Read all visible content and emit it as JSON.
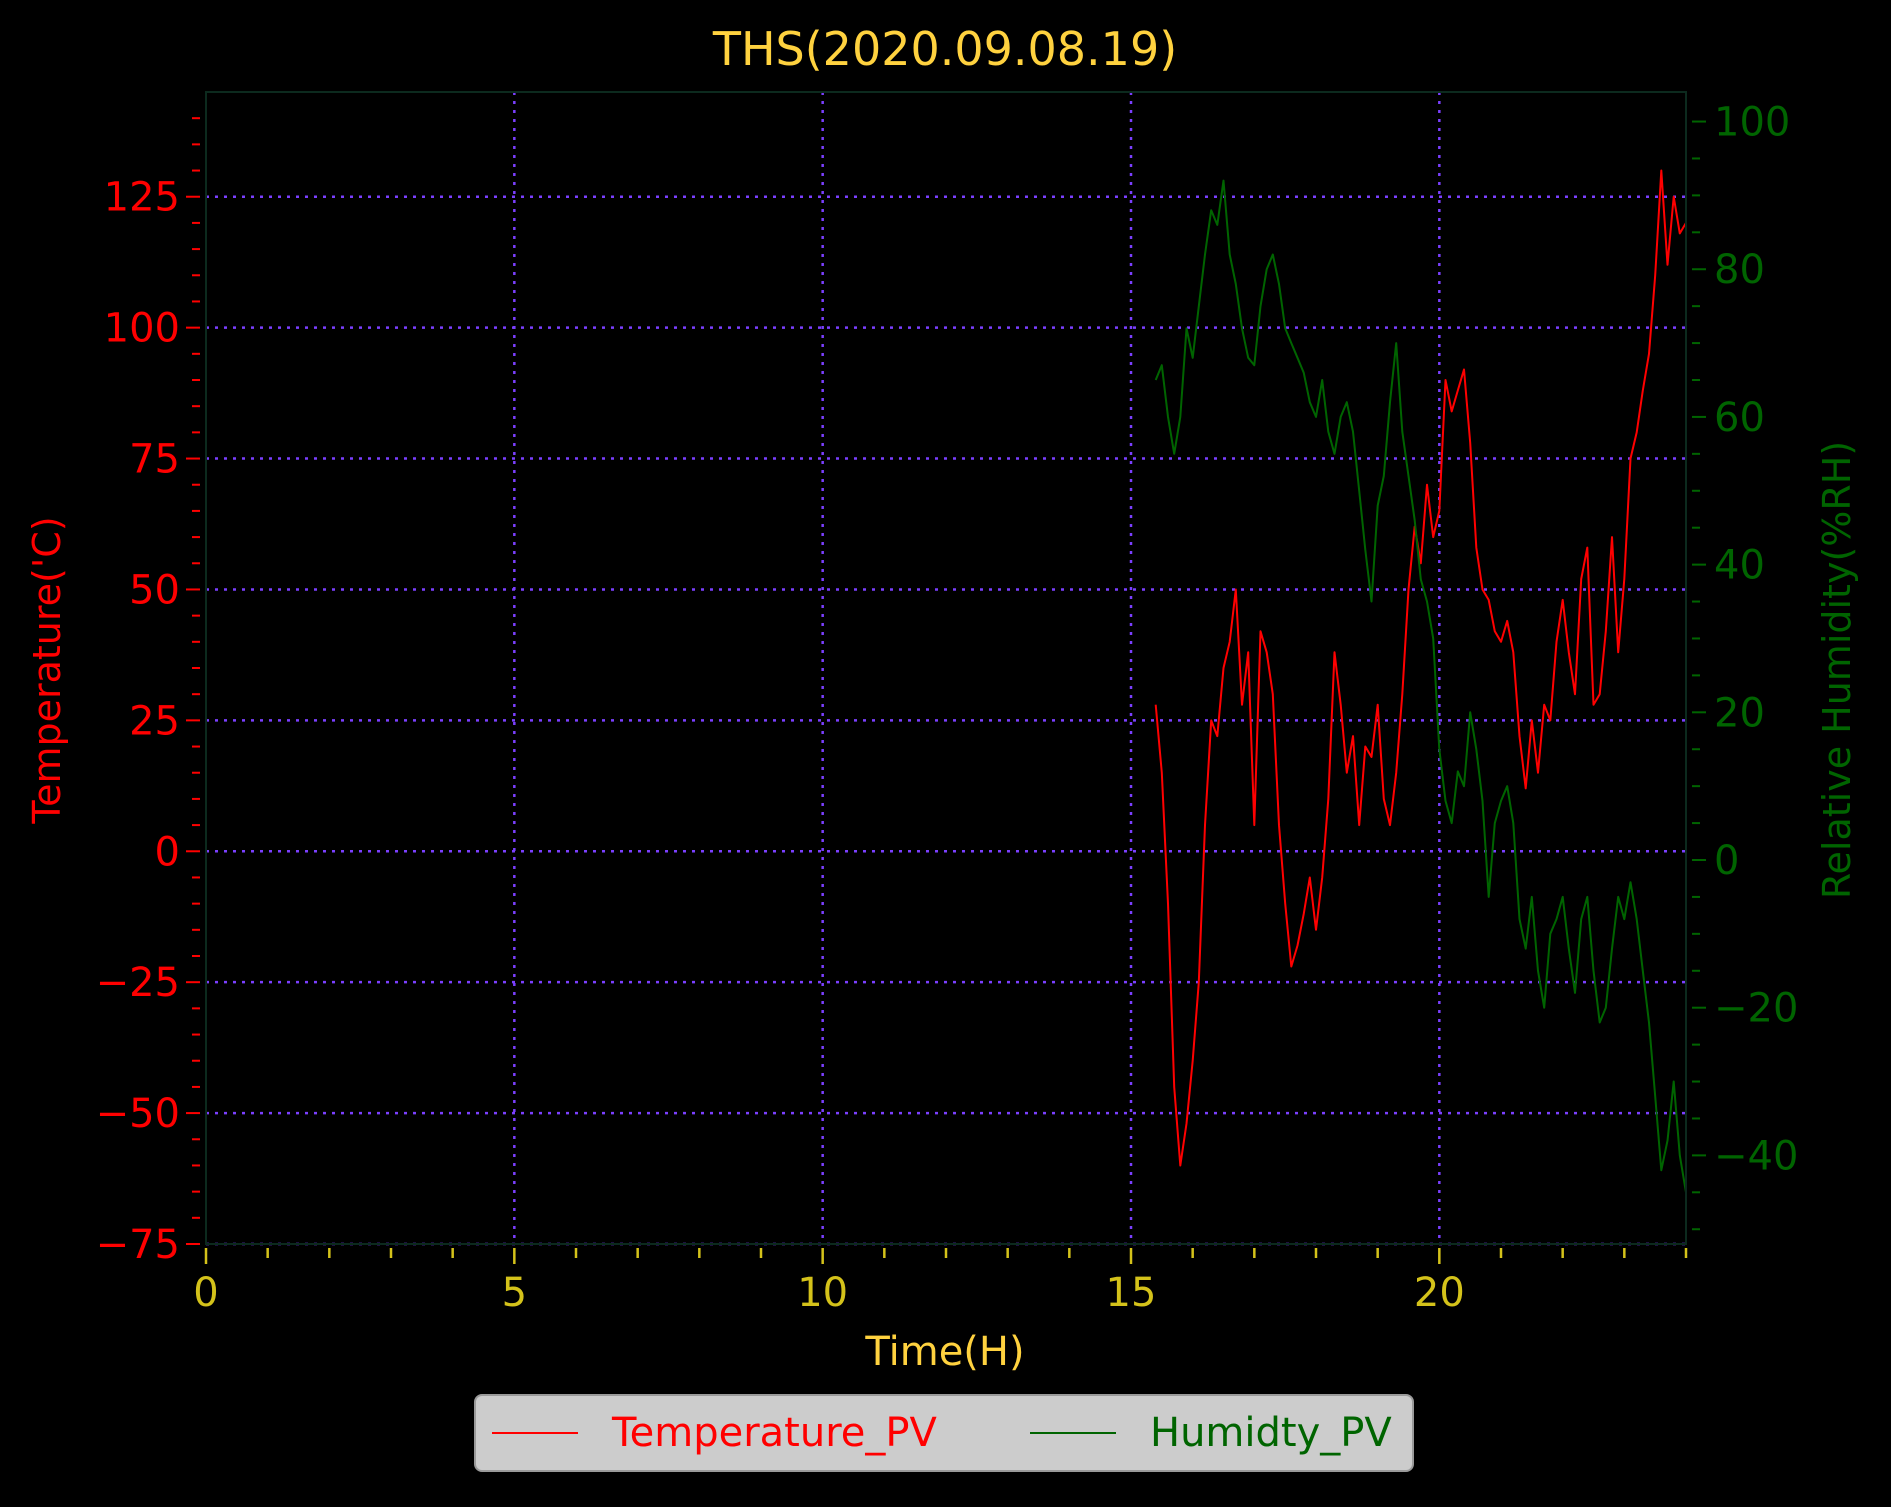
{
  "chart_data": {
    "type": "line",
    "title": "THS(2020.09.08.19)",
    "xlabel": "Time(H)",
    "ylabel_left": "Temperature('C)",
    "ylabel_right": "Relative Humidity(%RH)",
    "xlim": [
      0,
      24
    ],
    "ylim_left": [
      -75,
      145
    ],
    "ylim_right": [
      -52,
      104
    ],
    "x_ticks": [
      "0",
      "5",
      "10",
      "15",
      "20"
    ],
    "y_left_ticks": [
      "125",
      "100",
      "75",
      "50",
      "25",
      "0",
      "−25",
      "−50",
      "−75"
    ],
    "y_right_ticks": [
      "100",
      "80",
      "60",
      "40",
      "20",
      "0",
      "−20",
      "−40"
    ],
    "grid": true,
    "legend_position": "bottom-center",
    "colors": {
      "title": "#ffd23f",
      "x_axis": "#d4c21a",
      "temperature": "#ff0000",
      "humidity": "#006400",
      "grid": "#7b3fff"
    },
    "series": [
      {
        "name": "Temperature_PV",
        "axis": "left",
        "color": "#ff0000",
        "x": [
          15.4,
          15.5,
          15.6,
          15.7,
          15.8,
          15.9,
          16.0,
          16.1,
          16.2,
          16.3,
          16.4,
          16.5,
          16.6,
          16.7,
          16.8,
          16.9,
          17.0,
          17.1,
          17.2,
          17.3,
          17.4,
          17.5,
          17.6,
          17.7,
          17.8,
          17.9,
          18.0,
          18.1,
          18.2,
          18.3,
          18.4,
          18.5,
          18.6,
          18.7,
          18.8,
          18.9,
          19.0,
          19.1,
          19.2,
          19.3,
          19.4,
          19.5,
          19.6,
          19.7,
          19.8,
          19.9,
          20.0,
          20.1,
          20.2,
          20.3,
          20.4,
          20.5,
          20.6,
          20.7,
          20.8,
          20.9,
          21.0,
          21.1,
          21.2,
          21.3,
          21.4,
          21.5,
          21.6,
          21.7,
          21.8,
          21.9,
          22.0,
          22.1,
          22.2,
          22.3,
          22.4,
          22.5,
          22.6,
          22.7,
          22.8,
          22.9,
          23.0,
          23.1,
          23.2,
          23.3,
          23.4,
          23.5,
          23.6,
          23.7,
          23.8,
          23.9,
          24.0
        ],
        "values": [
          28,
          15,
          -10,
          -45,
          -60,
          -52,
          -40,
          -25,
          5,
          25,
          22,
          35,
          40,
          50,
          28,
          38,
          5,
          42,
          38,
          30,
          5,
          -10,
          -22,
          -18,
          -12,
          -5,
          -15,
          -5,
          10,
          38,
          28,
          15,
          22,
          5,
          20,
          18,
          28,
          10,
          5,
          15,
          30,
          50,
          62,
          55,
          70,
          60,
          65,
          90,
          84,
          88,
          92,
          78,
          58,
          50,
          48,
          42,
          40,
          44,
          38,
          22,
          12,
          25,
          15,
          28,
          25,
          40,
          48,
          38,
          30,
          52,
          58,
          28,
          30,
          42,
          60,
          38,
          52,
          75,
          80,
          88,
          95,
          110,
          130,
          112,
          125,
          118,
          120
        ]
      },
      {
        "name": "Humidty_PV",
        "axis": "right",
        "color": "#006400",
        "x": [
          15.4,
          15.5,
          15.6,
          15.7,
          15.8,
          15.9,
          16.0,
          16.1,
          16.2,
          16.3,
          16.4,
          16.5,
          16.6,
          16.7,
          16.8,
          16.9,
          17.0,
          17.1,
          17.2,
          17.3,
          17.4,
          17.5,
          17.6,
          17.7,
          17.8,
          17.9,
          18.0,
          18.1,
          18.2,
          18.3,
          18.4,
          18.5,
          18.6,
          18.7,
          18.8,
          18.9,
          19.0,
          19.1,
          19.2,
          19.3,
          19.4,
          19.5,
          19.6,
          19.7,
          19.8,
          19.9,
          20.0,
          20.1,
          20.2,
          20.3,
          20.4,
          20.5,
          20.6,
          20.7,
          20.8,
          20.9,
          21.0,
          21.1,
          21.2,
          21.3,
          21.4,
          21.5,
          21.6,
          21.7,
          21.8,
          21.9,
          22.0,
          22.1,
          22.2,
          22.3,
          22.4,
          22.5,
          22.6,
          22.7,
          22.8,
          22.9,
          23.0,
          23.1,
          23.2,
          23.3,
          23.4,
          23.5,
          23.6,
          23.7,
          23.8,
          23.9,
          24.0
        ],
        "values": [
          65,
          67,
          60,
          55,
          60,
          72,
          68,
          75,
          82,
          88,
          86,
          92,
          82,
          78,
          72,
          68,
          67,
          75,
          80,
          82,
          78,
          72,
          70,
          68,
          66,
          62,
          60,
          65,
          58,
          55,
          60,
          62,
          58,
          50,
          42,
          35,
          48,
          52,
          62,
          70,
          58,
          52,
          46,
          38,
          35,
          30,
          15,
          8,
          5,
          12,
          10,
          20,
          15,
          8,
          -5,
          5,
          8,
          10,
          5,
          -8,
          -12,
          -5,
          -15,
          -20,
          -10,
          -8,
          -5,
          -12,
          -18,
          -8,
          -5,
          -15,
          -22,
          -20,
          -12,
          -5,
          -8,
          -3,
          -8,
          -15,
          -22,
          -32,
          -42,
          -38,
          -30,
          -40,
          -45
        ]
      }
    ]
  },
  "legend": {
    "temperature_label": "Temperature_PV",
    "humidity_label": "Humidty_PV"
  }
}
